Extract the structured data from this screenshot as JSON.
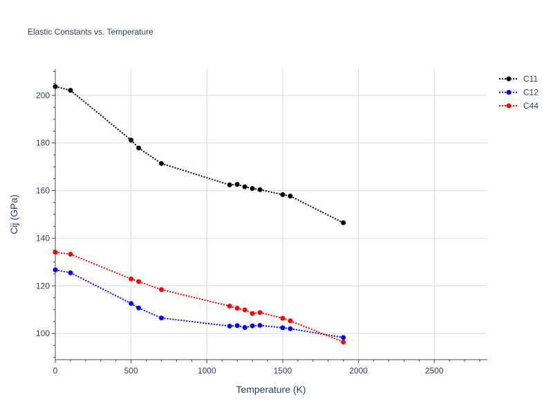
{
  "chart_data": {
    "type": "line",
    "title": "Elastic Constants vs. Temperature",
    "xlabel": "Temperature (K)",
    "ylabel": "Cij (GPa)",
    "xlim": [
      0,
      2850
    ],
    "ylim": [
      89,
      211
    ],
    "x_ticks": [
      0,
      500,
      1000,
      1500,
      2000,
      2500
    ],
    "y_ticks": [
      100,
      120,
      140,
      160,
      180,
      200
    ],
    "grid": true,
    "legend_position": "top-right",
    "series": [
      {
        "name": "C11",
        "color": "#000000",
        "x": [
          0,
          100,
          500,
          550,
          700,
          1150,
          1200,
          1250,
          1300,
          1350,
          1500,
          1550,
          1900
        ],
        "y": [
          203.7,
          202.1,
          181.2,
          177.9,
          171.4,
          162.4,
          162.6,
          161.6,
          160.9,
          160.4,
          158.3,
          157.7,
          146.5
        ]
      },
      {
        "name": "C12",
        "color": "#0000ff",
        "x": [
          0,
          100,
          500,
          550,
          700,
          1150,
          1200,
          1250,
          1300,
          1350,
          1500,
          1550,
          1900
        ],
        "y": [
          126.7,
          125.5,
          112.6,
          110.7,
          106.5,
          103.1,
          103.3,
          102.5,
          103.2,
          103.4,
          102.4,
          102.0,
          98.3
        ]
      },
      {
        "name": "C44",
        "color": "#ff0000",
        "x": [
          0,
          100,
          500,
          550,
          700,
          1150,
          1200,
          1250,
          1300,
          1350,
          1500,
          1550,
          1900
        ],
        "y": [
          134.1,
          133.3,
          122.9,
          121.8,
          118.4,
          111.5,
          110.6,
          109.9,
          108.4,
          108.8,
          106.4,
          105.3,
          96.4
        ]
      }
    ]
  }
}
